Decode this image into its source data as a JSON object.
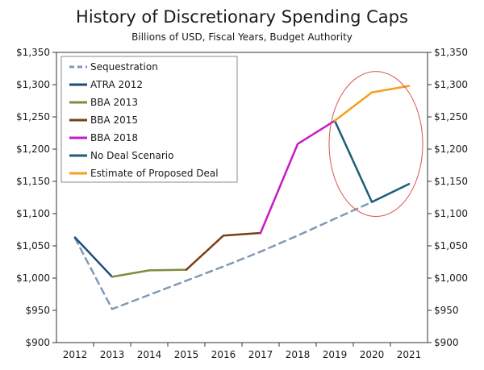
{
  "chart_data": {
    "type": "line",
    "title": "History of Discretionary Spending Caps",
    "subtitle": "Billions of USD, Fiscal Years, Budget Authority",
    "x_categories": [
      "2012",
      "2013",
      "2014",
      "2015",
      "2016",
      "2017",
      "2018",
      "2019",
      "2020",
      "2021"
    ],
    "y_ticks": [
      "$900",
      "$950",
      "$1,000",
      "$1,050",
      "$1,100",
      "$1,150",
      "$1,200",
      "$1,250",
      "$1,300",
      "$1,350"
    ],
    "ylim": [
      900,
      1350
    ],
    "grid": false,
    "legend_position": "top-left",
    "series": [
      {
        "name": "Sequestration",
        "color": "#7f99b8",
        "dashed": true,
        "points": [
          [
            "2012",
            1062
          ],
          [
            "2013",
            952
          ],
          [
            "2014",
            974
          ],
          [
            "2015",
            996
          ],
          [
            "2016",
            1018
          ],
          [
            "2017",
            1041
          ],
          [
            "2018",
            1066
          ],
          [
            "2019",
            1092
          ],
          [
            "2020",
            1118
          ]
        ]
      },
      {
        "name": "ATRA 2012",
        "color": "#1f4e79",
        "dashed": false,
        "points": [
          [
            "2012",
            1063
          ],
          [
            "2013",
            1002
          ]
        ]
      },
      {
        "name": "BBA 2013",
        "color": "#7f8c3f",
        "dashed": false,
        "points": [
          [
            "2013",
            1002
          ],
          [
            "2014",
            1012
          ],
          [
            "2015",
            1013
          ]
        ]
      },
      {
        "name": "BBA 2015",
        "color": "#7a3f12",
        "dashed": false,
        "points": [
          [
            "2015",
            1013
          ],
          [
            "2016",
            1066
          ],
          [
            "2017",
            1070
          ]
        ]
      },
      {
        "name": "BBA 2018",
        "color": "#c71ac7",
        "dashed": false,
        "points": [
          [
            "2017",
            1070
          ],
          [
            "2018",
            1208
          ],
          [
            "2019",
            1244
          ]
        ]
      },
      {
        "name": "No Deal Scenario",
        "color": "#1a5f7a",
        "dashed": false,
        "points": [
          [
            "2019",
            1244
          ],
          [
            "2020",
            1118
          ],
          [
            "2021",
            1146
          ]
        ]
      },
      {
        "name": "Estimate of Proposed Deal",
        "color": "#f5a01c",
        "dashed": false,
        "points": [
          [
            "2019",
            1244
          ],
          [
            "2020",
            1288
          ],
          [
            "2021",
            1298
          ]
        ]
      }
    ],
    "annotation": {
      "type": "ellipse",
      "color": "#e05050",
      "description_visible": false
    }
  }
}
